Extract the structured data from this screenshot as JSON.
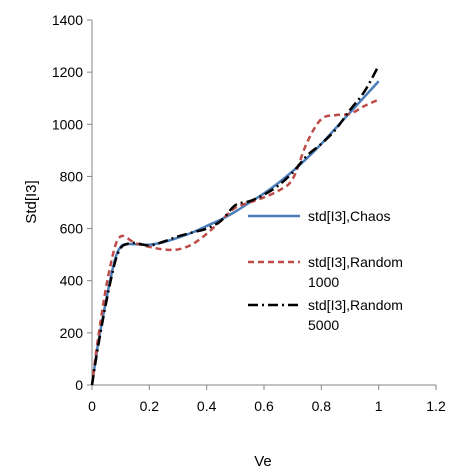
{
  "chart_data": {
    "type": "line",
    "title": "",
    "xlabel": "Ve",
    "ylabel": "Std[I3]",
    "xlim": [
      0,
      1.2
    ],
    "ylim": [
      0,
      1400
    ],
    "xticks": [
      "0",
      "0.2",
      "0.4",
      "0.6",
      "0.8",
      "1",
      "1.2"
    ],
    "yticks": [
      "0",
      "200",
      "400",
      "600",
      "800",
      "1000",
      "1200",
      "1400"
    ],
    "grid": false,
    "legend_position": "right",
    "series": [
      {
        "name": "std[I3],Chaos",
        "color": "#4a7ebb",
        "style": "solid",
        "x": [
          0,
          0.02,
          0.05,
          0.08,
          0.1,
          0.12,
          0.15,
          0.2,
          0.25,
          0.3,
          0.35,
          0.4,
          0.45,
          0.5,
          0.55,
          0.6,
          0.65,
          0.7,
          0.75,
          0.8,
          0.85,
          0.9,
          0.95,
          1.0
        ],
        "y": [
          0,
          150,
          330,
          480,
          530,
          540,
          540,
          538,
          548,
          565,
          585,
          610,
          635,
          665,
          700,
          735,
          775,
          820,
          870,
          925,
          985,
          1045,
          1105,
          1165
        ]
      },
      {
        "name": "std[I3],Random 1000",
        "color": "#be4b48",
        "style": "dashed",
        "x": [
          0,
          0.02,
          0.05,
          0.08,
          0.1,
          0.12,
          0.15,
          0.2,
          0.25,
          0.3,
          0.35,
          0.4,
          0.45,
          0.5,
          0.55,
          0.6,
          0.65,
          0.7,
          0.75,
          0.8,
          0.85,
          0.9,
          0.95,
          1.0
        ],
        "y": [
          0,
          170,
          380,
          530,
          570,
          565,
          545,
          530,
          520,
          520,
          540,
          580,
          630,
          680,
          700,
          720,
          745,
          790,
          930,
          1020,
          1035,
          1040,
          1070,
          1095
        ]
      },
      {
        "name": "std[I3],Random 5000",
        "color": "#000000",
        "style": "dashdot",
        "x": [
          0,
          0.02,
          0.05,
          0.08,
          0.1,
          0.12,
          0.15,
          0.2,
          0.25,
          0.3,
          0.35,
          0.4,
          0.45,
          0.5,
          0.55,
          0.6,
          0.65,
          0.7,
          0.75,
          0.8,
          0.85,
          0.9,
          0.95,
          1.0
        ],
        "y": [
          0,
          140,
          320,
          470,
          525,
          540,
          545,
          535,
          550,
          570,
          585,
          600,
          630,
          690,
          705,
          730,
          765,
          815,
          880,
          925,
          980,
          1055,
          1125,
          1225
        ]
      }
    ]
  }
}
